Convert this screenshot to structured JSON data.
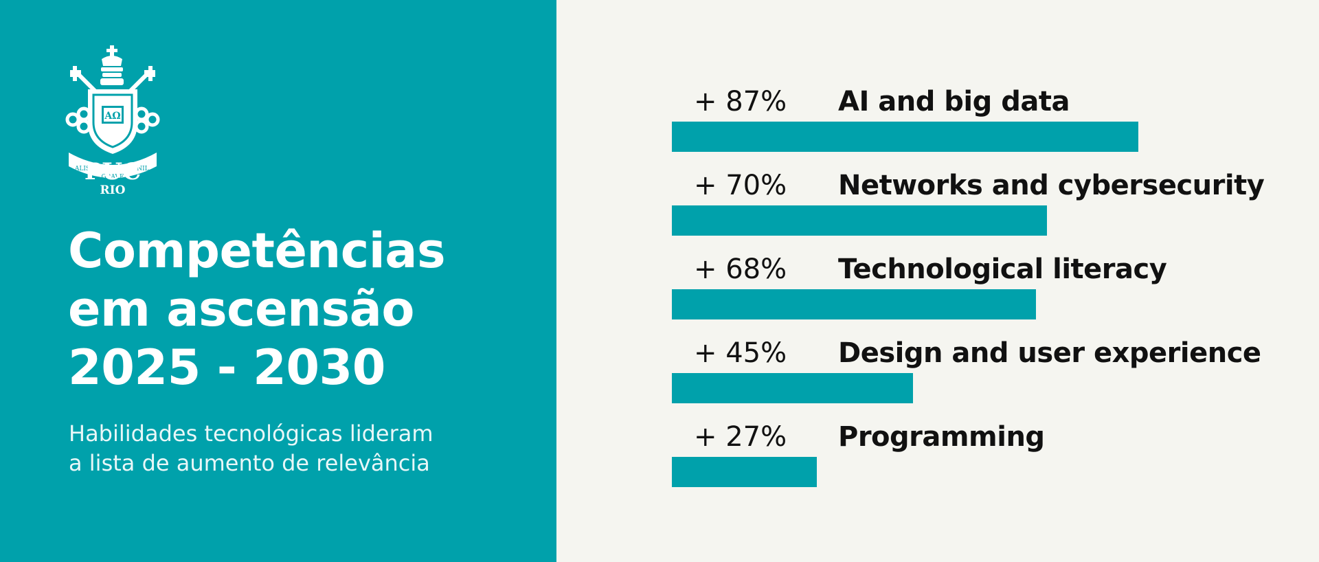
{
  "colors": {
    "panel": "#00a1ab",
    "background": "#f5f5f0",
    "bar": "#00a1ab",
    "text": "#111111",
    "logo": "#ffffff"
  },
  "logo": {
    "name": "PUC",
    "sub": "RIO",
    "motto": [
      "ALIS",
      "GRAVE",
      "NIL"
    ],
    "shield_letters": "AΩ"
  },
  "headline": {
    "lines": [
      "Competências",
      "em ascensão",
      "2025 - 2030"
    ]
  },
  "subheadline": {
    "lines": [
      "Habilidades tecnológicas lideram",
      "a lista de aumento de relevância"
    ]
  },
  "chart_data": {
    "type": "bar",
    "orientation": "horizontal",
    "categories": [
      "AI and big data",
      "Networks and cybersecurity",
      "Technological literacy",
      "Design and user experience",
      "Programming"
    ],
    "values": [
      87,
      70,
      68,
      45,
      27
    ],
    "value_labels": [
      "+ 87%",
      "+ 70%",
      "+ 68%",
      "+ 45%",
      "+ 27%"
    ],
    "unit": "%",
    "xlim": [
      0,
      100
    ],
    "grid": false,
    "legend": "none"
  }
}
